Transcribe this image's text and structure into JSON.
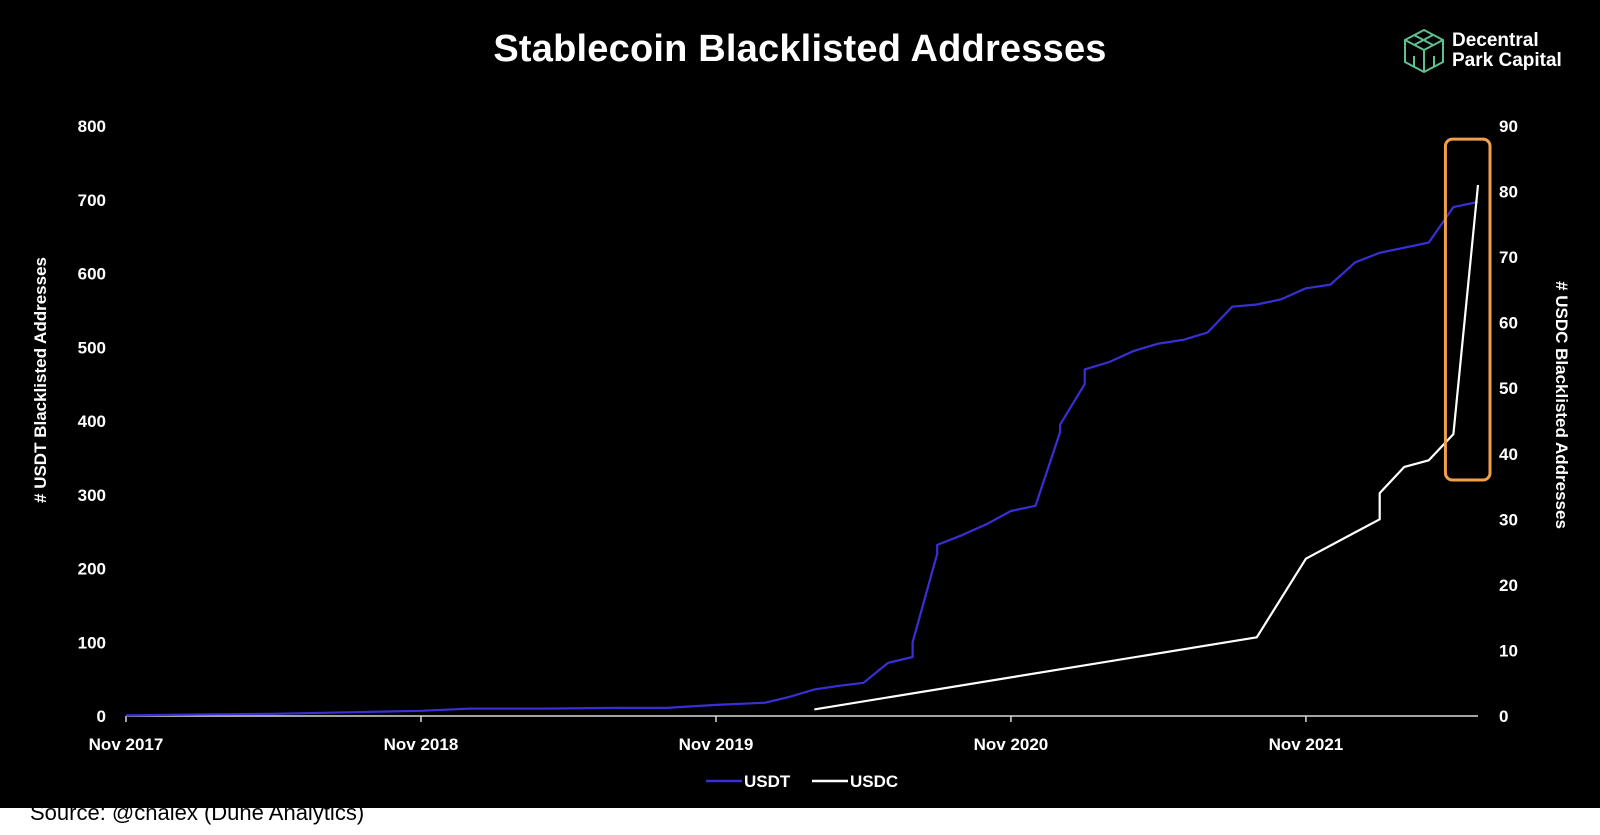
{
  "logo": {
    "line1": "Decentral",
    "line2": "Park Capital",
    "icon": "cube-icon",
    "color": "#5fbf8f"
  },
  "source_note": "Source: @chalex (Dune Analytics)",
  "chart_data": {
    "type": "line",
    "title": "Stablecoin Blacklisted Addresses",
    "xlabel": "",
    "x_ticks": [
      "Nov 2017",
      "Nov 2018",
      "Nov 2019",
      "Nov 2020",
      "Nov 2021"
    ],
    "x_range": [
      "2017-11",
      "2022-06"
    ],
    "y_left": {
      "label": "# USDT Blacklisted Addresses",
      "ticks": [
        0,
        100,
        200,
        300,
        400,
        500,
        600,
        700,
        800
      ],
      "range": [
        0,
        800
      ]
    },
    "y_right": {
      "label": "# USDC Blacklisted Addresses",
      "ticks": [
        0,
        10,
        20,
        30,
        40,
        50,
        60,
        70,
        80,
        90
      ],
      "range": [
        0,
        90
      ]
    },
    "grid": false,
    "legend_position": "bottom",
    "series": [
      {
        "name": "USDT",
        "axis": "left",
        "color": "#3a2fd6",
        "x": [
          "2017-11",
          "2018-02",
          "2018-05",
          "2018-08",
          "2018-11",
          "2019-01",
          "2019-04",
          "2019-07",
          "2019-09",
          "2019-11",
          "2020-01",
          "2020-02",
          "2020-03",
          "2020-04",
          "2020-05",
          "2020-06",
          "2020-07",
          "2020-07",
          "2020-07",
          "2020-08",
          "2020-08",
          "2020-09",
          "2020-10",
          "2020-11",
          "2020-12",
          "2021-01",
          "2021-01",
          "2021-02",
          "2021-02",
          "2021-03",
          "2021-04",
          "2021-05",
          "2021-06",
          "2021-07",
          "2021-08",
          "2021-09",
          "2021-10",
          "2021-11",
          "2021-12",
          "2022-01",
          "2022-02",
          "2022-03",
          "2022-04",
          "2022-05",
          "2022-06"
        ],
        "values": [
          1,
          2,
          3,
          5,
          7,
          10,
          10,
          11,
          11,
          15,
          18,
          26,
          36,
          41,
          45,
          72,
          80,
          90,
          100,
          220,
          232,
          245,
          260,
          278,
          285,
          385,
          395,
          450,
          470,
          480,
          495,
          505,
          510,
          520,
          555,
          558,
          565,
          580,
          585,
          615,
          628,
          635,
          642,
          690,
          697
        ]
      },
      {
        "name": "USDC",
        "axis": "right",
        "color": "#ffffff",
        "x": [
          "2020-03",
          "2021-09",
          "2021-11",
          "2022-01",
          "2022-02",
          "2022-02",
          "2022-03",
          "2022-04",
          "2022-05",
          "2022-06"
        ],
        "values": [
          1,
          12,
          24,
          28,
          30,
          34,
          38,
          39,
          43,
          81
        ]
      }
    ],
    "annotations": [
      {
        "type": "highlight-box",
        "color": "#f0a04b",
        "x_range": [
          "2022-05",
          "2022-06"
        ],
        "y_right_range": [
          36,
          88
        ]
      }
    ]
  }
}
